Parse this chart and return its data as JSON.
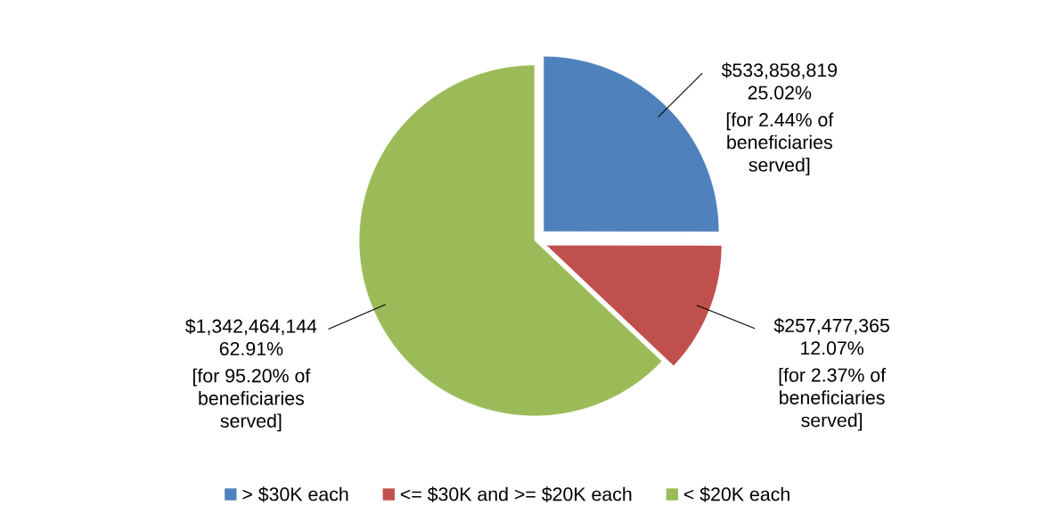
{
  "chart_data": {
    "type": "pie",
    "categories": [
      "> $30K each",
      "<= $30K and >= $20K each",
      "< $20K each"
    ],
    "values": [
      533858819,
      257477365,
      1342464144
    ],
    "colors": [
      "#4f81bd",
      "#c0504d",
      "#9bbb59"
    ],
    "value_labels": [
      "$533,858,819",
      "$257,477,365",
      "$1,342,464,144"
    ],
    "annotations": [
      "25.02%",
      "[for 2.44% of beneficiaries served]",
      "12.07%",
      "[for 2.37% of beneficiaries served]",
      "62.91%",
      "[for 95.20% of beneficiaries served]"
    ],
    "legend": "bottom"
  }
}
